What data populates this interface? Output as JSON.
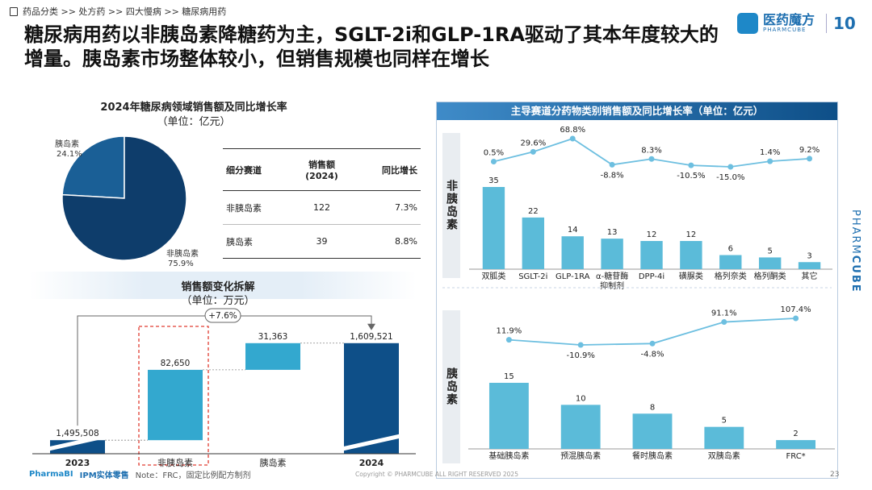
{
  "breadcrumb": "药品分类 >> 处方药 >> 四大慢病 >> 糖尿病用药",
  "title": "糖尿病用药以非胰岛素降糖药为主，SGLT-2i和GLP-1RA驱动了其本年度较大的增量。胰岛素市场整体较小，但销售规模也同样在增长",
  "logo": {
    "cn": "医药魔方",
    "en": "PHARMCUBE",
    "anniv": "10"
  },
  "side_brand": {
    "prefix": "PHARM",
    "bold": "CUBE"
  },
  "pie": {
    "title": "2024年糖尿病领域销售额及同比增长率",
    "unit": "（单位：亿元）",
    "slices": [
      {
        "label": "胰岛素",
        "pct_label": "24.1%",
        "value": 24.1,
        "color": "#1a5f96"
      },
      {
        "label": "非胰岛素",
        "pct_label": "75.9%",
        "value": 75.9,
        "color": "#0e3d6b"
      }
    ]
  },
  "table": {
    "headers": [
      "细分赛道",
      "销售额\n(2024)",
      "同比增长"
    ],
    "rows": [
      [
        "非胰岛素",
        "122",
        "7.3%"
      ],
      [
        "胰岛素",
        "39",
        "8.8%"
      ]
    ]
  },
  "waterfall": {
    "title": "销售额变化拆解",
    "unit": "（单位：万元）",
    "growth_label": "+7.6%",
    "categories": [
      "2023",
      "非胰岛素",
      "胰岛素",
      "2024"
    ],
    "values": [
      1495508,
      82650,
      31363,
      1609521
    ],
    "labels": [
      "1,495,508",
      "82,650",
      "31,363",
      "1,609,521"
    ],
    "colors": {
      "total": "#0e4f88",
      "step": "#33a8cf"
    }
  },
  "right_panel": {
    "title": "主导赛道分药物类别销售额及同比增长率（单位：亿元）",
    "sections": [
      {
        "name": "非胰岛素"
      },
      {
        "name": "胰岛素"
      }
    ]
  },
  "chart_data": [
    {
      "type": "pie",
      "title": "2024年糖尿病领域销售额及同比增长率",
      "categories": [
        "胰岛素",
        "非胰岛素"
      ],
      "values": [
        24.1,
        75.9
      ]
    },
    {
      "type": "bar",
      "title": "销售额变化拆解",
      "categories": [
        "2023",
        "非胰岛素",
        "胰岛素",
        "2024"
      ],
      "values": [
        1495508,
        82650,
        31363,
        1609521
      ]
    },
    {
      "type": "bar",
      "title": "非胰岛素",
      "categories": [
        "双胍类",
        "SGLT-2i",
        "GLP-1RA",
        "α-糖苷酶\n抑制剂",
        "DPP-4i",
        "磺脲类",
        "格列奈类",
        "格列酮类",
        "其它"
      ],
      "values": [
        35,
        22,
        14,
        13,
        12,
        12,
        6,
        5,
        3
      ],
      "growth": [
        0.5,
        29.6,
        68.8,
        -8.8,
        8.3,
        -10.5,
        -15.0,
        1.4,
        9.2
      ],
      "growth_labels": [
        "0.5%",
        "29.6%",
        "68.8%",
        "-8.8%",
        "8.3%",
        "-10.5%",
        "-15.0%",
        "1.4%",
        "9.2%"
      ]
    },
    {
      "type": "bar",
      "title": "胰岛素",
      "categories": [
        "基础胰岛素",
        "预混胰岛素",
        "餐时胰岛素",
        "双胰岛素",
        "FRC*"
      ],
      "values": [
        15,
        10,
        8,
        5,
        2
      ],
      "growth": [
        11.9,
        -10.9,
        -4.8,
        91.1,
        107.4
      ],
      "growth_labels": [
        "11.9%",
        "-10.9%",
        "-4.8%",
        "91.1%",
        "107.4%"
      ]
    }
  ],
  "footer": {
    "brand": "PharmaBI",
    "product": "IPM实体零售",
    "note": "Note：FRC，固定比例配方制剂",
    "copyright": "Copyright © PHARMCUBE ALL RIGHT RESERVED 2025",
    "page": "23"
  }
}
